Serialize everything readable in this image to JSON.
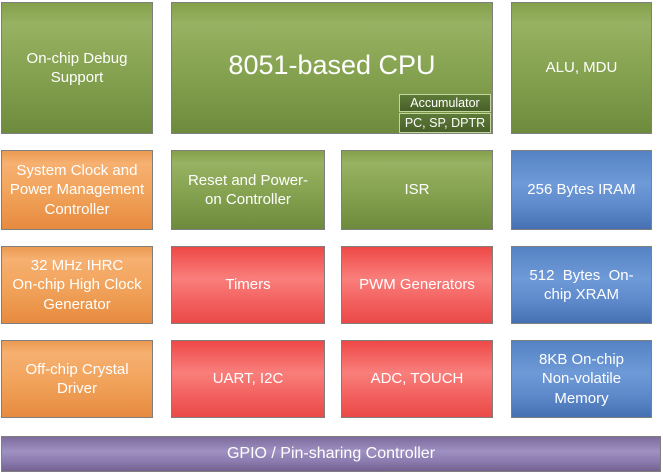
{
  "palette": {
    "block-border": "#7f7f7f",
    "text": "#ffffff",
    "green-0": "#84a04b",
    "green-1": "#97b262",
    "green-2": "#86a351",
    "green-3": "#6e8b3d",
    "orange-0": "#eb9a51",
    "orange-1": "#f6b071",
    "orange-2": "#f2a45c",
    "orange-3": "#e68b3f",
    "red-0": "#ee4846",
    "red-1": "#f97f7c",
    "red-2": "#f2605e",
    "red-3": "#ea4947",
    "blue-0": "#5482c3",
    "blue-1": "#6f9ad8",
    "blue-2": "#5d89cb",
    "blue-3": "#4571b3",
    "purple-0": "#7d6c9d",
    "purple-1": "#9e90c1",
    "purple-2": "#8b7bae",
    "purple-3": "#746191",
    "sub-fill-0": "#5e7b37",
    "sub-fill-1": "#475f2a",
    "sub-border": "#c3d69b"
  },
  "blocks": {
    "debug": {
      "label": "On-chip Debug\nSupport",
      "color": "green"
    },
    "cpu": {
      "label": "8051-based CPU",
      "color": "green"
    },
    "accumulator": {
      "label": "Accumulator",
      "color": "dark-green"
    },
    "registers": {
      "label": "PC, SP, DPTR",
      "color": "dark-green"
    },
    "alu": {
      "label": "ALU, MDU",
      "color": "green"
    },
    "system_clock": {
      "label": "System Clock and\nPower Management\nController",
      "color": "orange"
    },
    "reset": {
      "label": "Reset and Power-\non Controller",
      "color": "green"
    },
    "isr": {
      "label": "ISR",
      "color": "green"
    },
    "iram": {
      "label": "256 Bytes IRAM",
      "color": "blue"
    },
    "ihrc": {
      "label": "32 MHz IHRC\nOn-chip High Clock\nGenerator",
      "color": "orange"
    },
    "timers": {
      "label": "Timers",
      "color": "red"
    },
    "pwm": {
      "label": "PWM Generators",
      "color": "red"
    },
    "xram": {
      "label": "512  Bytes  On-\nchip XRAM",
      "color": "blue"
    },
    "crystal": {
      "label": "Off-chip Crystal\nDriver",
      "color": "orange"
    },
    "uart": {
      "label": "UART, I2C",
      "color": "red"
    },
    "adc": {
      "label": "ADC, TOUCH",
      "color": "red"
    },
    "nvm": {
      "label": "8KB On-chip\nNon-volatile\nMemory",
      "color": "blue"
    },
    "gpio": {
      "label": "GPIO / Pin-sharing Controller",
      "color": "purple"
    }
  }
}
